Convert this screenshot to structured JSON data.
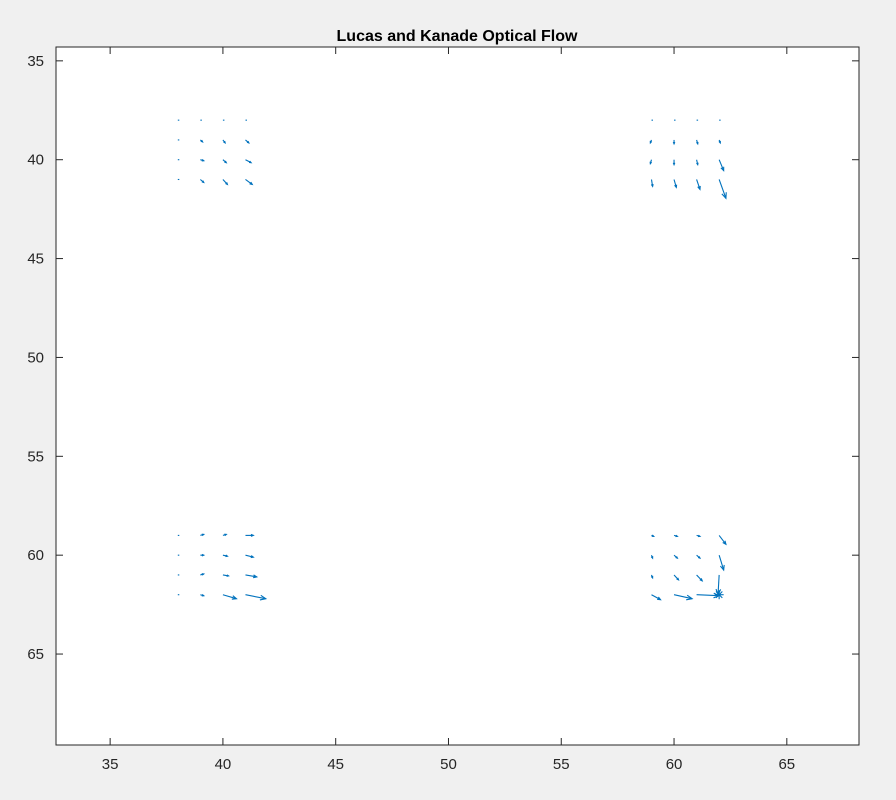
{
  "chart_data": {
    "type": "quiver",
    "title": "Lucas and Kanade Optical Flow",
    "xlabel": "",
    "ylabel": "",
    "xlim": [
      32.6,
      68.2
    ],
    "ylim": [
      34.3,
      69.6
    ],
    "y_axis_direction": "reversed",
    "grid": false,
    "x_ticks": [
      35,
      40,
      45,
      50,
      55,
      60,
      65
    ],
    "y_ticks": [
      35,
      40,
      45,
      50,
      55,
      60,
      65
    ],
    "arrow_color": "#0072BD",
    "background_color": "#f0f0f0",
    "axes_color": "#ffffff",
    "marker": {
      "x": 62,
      "y": 62,
      "symbol": "*"
    },
    "vectors": [
      {
        "x": 38,
        "y": 38,
        "u": 0,
        "v": 0
      },
      {
        "x": 39,
        "y": 38,
        "u": 0.05,
        "v": 0
      },
      {
        "x": 40,
        "y": 38,
        "u": 0.05,
        "v": 0
      },
      {
        "x": 41,
        "y": 38,
        "u": 0.05,
        "v": 0
      },
      {
        "x": 38,
        "y": 39,
        "u": 0.05,
        "v": 0
      },
      {
        "x": 39,
        "y": 39,
        "u": 0.1,
        "v": 0.1
      },
      {
        "x": 40,
        "y": 39,
        "u": 0.1,
        "v": 0.15
      },
      {
        "x": 41,
        "y": 39,
        "u": 0.15,
        "v": 0.15
      },
      {
        "x": 38,
        "y": 40,
        "u": 0.05,
        "v": 0
      },
      {
        "x": 39,
        "y": 40,
        "u": 0.15,
        "v": 0.05
      },
      {
        "x": 40,
        "y": 40,
        "u": 0.15,
        "v": 0.15
      },
      {
        "x": 41,
        "y": 40,
        "u": 0.25,
        "v": 0.15
      },
      {
        "x": 38,
        "y": 41,
        "u": 0.05,
        "v": 0
      },
      {
        "x": 39,
        "y": 41,
        "u": 0.15,
        "v": 0.15
      },
      {
        "x": 40,
        "y": 41,
        "u": 0.2,
        "v": 0.25
      },
      {
        "x": 41,
        "y": 41,
        "u": 0.3,
        "v": 0.25
      },
      {
        "x": 59,
        "y": 38,
        "u": 0,
        "v": 0.05
      },
      {
        "x": 60,
        "y": 38,
        "u": 0,
        "v": 0.05
      },
      {
        "x": 61,
        "y": 38,
        "u": 0.05,
        "v": 0.05
      },
      {
        "x": 62,
        "y": 38,
        "u": 0,
        "v": 0
      },
      {
        "x": 59,
        "y": 39,
        "u": -0.05,
        "v": 0.15
      },
      {
        "x": 60,
        "y": 39,
        "u": 0,
        "v": 0.2
      },
      {
        "x": 61,
        "y": 39,
        "u": 0.05,
        "v": 0.2
      },
      {
        "x": 62,
        "y": 39,
        "u": 0.05,
        "v": 0.15
      },
      {
        "x": 59,
        "y": 40,
        "u": -0.05,
        "v": 0.2
      },
      {
        "x": 60,
        "y": 40,
        "u": 0,
        "v": 0.25
      },
      {
        "x": 61,
        "y": 40,
        "u": 0.05,
        "v": 0.25
      },
      {
        "x": 62,
        "y": 40,
        "u": 0.2,
        "v": 0.55
      },
      {
        "x": 59,
        "y": 41,
        "u": 0.05,
        "v": 0.35
      },
      {
        "x": 60,
        "y": 41,
        "u": 0.1,
        "v": 0.4
      },
      {
        "x": 61,
        "y": 41,
        "u": 0.15,
        "v": 0.5
      },
      {
        "x": 62,
        "y": 41,
        "u": 0.3,
        "v": 0.95
      },
      {
        "x": 38,
        "y": 59,
        "u": 0.05,
        "v": 0
      },
      {
        "x": 39,
        "y": 59,
        "u": 0.15,
        "v": -0.05
      },
      {
        "x": 40,
        "y": 59,
        "u": 0.15,
        "v": -0.05
      },
      {
        "x": 41,
        "y": 59,
        "u": 0.35,
        "v": 0
      },
      {
        "x": 38,
        "y": 60,
        "u": 0.05,
        "v": 0
      },
      {
        "x": 39,
        "y": 60,
        "u": 0.15,
        "v": 0
      },
      {
        "x": 40,
        "y": 60,
        "u": 0.2,
        "v": 0.05
      },
      {
        "x": 41,
        "y": 60,
        "u": 0.35,
        "v": 0.1
      },
      {
        "x": 38,
        "y": 61,
        "u": 0.05,
        "v": 0
      },
      {
        "x": 39,
        "y": 61,
        "u": 0.15,
        "v": -0.05
      },
      {
        "x": 40,
        "y": 61,
        "u": 0.25,
        "v": 0.05
      },
      {
        "x": 41,
        "y": 61,
        "u": 0.5,
        "v": 0.1
      },
      {
        "x": 38,
        "y": 62,
        "u": 0,
        "v": 0
      },
      {
        "x": 39,
        "y": 62,
        "u": 0.15,
        "v": 0.05
      },
      {
        "x": 40,
        "y": 62,
        "u": 0.6,
        "v": 0.2
      },
      {
        "x": 41,
        "y": 62,
        "u": 0.9,
        "v": 0.2
      },
      {
        "x": 59,
        "y": 59,
        "u": 0.1,
        "v": 0.05
      },
      {
        "x": 60,
        "y": 59,
        "u": 0.15,
        "v": 0.05
      },
      {
        "x": 61,
        "y": 59,
        "u": 0.15,
        "v": 0.05
      },
      {
        "x": 62,
        "y": 59,
        "u": 0.3,
        "v": 0.45
      },
      {
        "x": 59,
        "y": 60,
        "u": 0.05,
        "v": 0.15
      },
      {
        "x": 60,
        "y": 60,
        "u": 0.15,
        "v": 0.15
      },
      {
        "x": 61,
        "y": 60,
        "u": 0.15,
        "v": 0.15
      },
      {
        "x": 62,
        "y": 60,
        "u": 0.2,
        "v": 0.75
      },
      {
        "x": 59,
        "y": 61,
        "u": 0.05,
        "v": 0.15
      },
      {
        "x": 60,
        "y": 61,
        "u": 0.2,
        "v": 0.25
      },
      {
        "x": 61,
        "y": 61,
        "u": 0.25,
        "v": 0.3
      },
      {
        "x": 62,
        "y": 61,
        "u": -0.05,
        "v": 1.0
      },
      {
        "x": 59,
        "y": 62,
        "u": 0.4,
        "v": 0.25
      },
      {
        "x": 60,
        "y": 62,
        "u": 0.8,
        "v": 0.2
      },
      {
        "x": 61,
        "y": 62,
        "u": 1.0,
        "v": 0.05
      },
      {
        "x": 62,
        "y": 62,
        "u": 0,
        "v": 0
      }
    ]
  }
}
